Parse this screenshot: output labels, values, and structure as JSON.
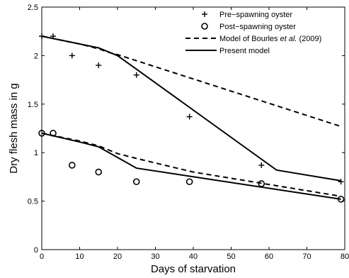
{
  "chart_data": {
    "type": "line",
    "title": "",
    "xlabel": "Days of starvation",
    "ylabel": "Dry flesh mass in g",
    "xlim": [
      0,
      80
    ],
    "ylim": [
      0,
      2.5
    ],
    "xticks": [
      0,
      10,
      20,
      30,
      40,
      50,
      60,
      70,
      80
    ],
    "yticks": [
      0,
      0.5,
      1,
      1.5,
      2,
      2.5
    ],
    "xtick_labels": [
      "0",
      "10",
      "20",
      "30",
      "40",
      "50",
      "60",
      "70",
      "80"
    ],
    "ytick_labels": [
      "0",
      "0.5",
      "1",
      "1.5",
      "2",
      "2.5"
    ],
    "grid": false,
    "legend_position": "top-right",
    "legend": [
      {
        "label": "Pre−spawning oyster",
        "marker": "plus"
      },
      {
        "label": "Post−spawning oyster",
        "marker": "circle"
      },
      {
        "label_parts": [
          "Model of Bourles ",
          "et al.",
          " (2009)"
        ],
        "line": "dashed"
      },
      {
        "label": "Present model",
        "line": "solid"
      }
    ],
    "series": [
      {
        "name": "Pre−spawning oyster",
        "kind": "scatter",
        "marker": "plus",
        "x": [
          0,
          3,
          8,
          15,
          25,
          39,
          58,
          79
        ],
        "y": [
          2.2,
          2.2,
          2.0,
          1.9,
          1.8,
          1.37,
          0.87,
          0.7
        ]
      },
      {
        "name": "Post−spawning oyster",
        "kind": "scatter",
        "marker": "circle",
        "x": [
          0,
          3,
          8,
          15,
          25,
          39,
          58,
          79
        ],
        "y": [
          1.2,
          1.2,
          0.87,
          0.8,
          0.7,
          0.7,
          0.68,
          0.52
        ]
      },
      {
        "name": "Model of Bourles et al. (2009), pre-spawning",
        "kind": "line",
        "dash": true,
        "x": [
          0,
          10,
          15,
          18,
          20,
          79
        ],
        "y": [
          2.2,
          2.12,
          2.07,
          2.03,
          2.01,
          1.27
        ]
      },
      {
        "name": "Model of Bourles et al. (2009), post-spawning",
        "kind": "line",
        "dash": true,
        "x": [
          0,
          10,
          15,
          20,
          25,
          40,
          79
        ],
        "y": [
          1.2,
          1.12,
          1.07,
          0.99,
          0.94,
          0.8,
          0.55
        ]
      },
      {
        "name": "Present model, pre-spawning",
        "kind": "line",
        "dash": false,
        "x": [
          0,
          10,
          15,
          20,
          25,
          62,
          79
        ],
        "y": [
          2.2,
          2.12,
          2.08,
          2.0,
          1.86,
          0.82,
          0.71
        ]
      },
      {
        "name": "Present model, post-spawning",
        "kind": "line",
        "dash": false,
        "x": [
          0,
          10,
          15,
          20,
          25,
          79
        ],
        "y": [
          1.2,
          1.11,
          1.06,
          0.95,
          0.84,
          0.52
        ]
      }
    ]
  }
}
